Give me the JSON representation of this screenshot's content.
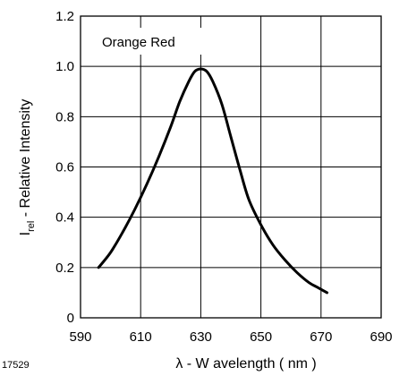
{
  "figure_id": "17529",
  "chart_data": {
    "type": "line",
    "annotation": "Orange Red",
    "xlabel": "λ - W avelength ( nm )",
    "ylabel_main": "I",
    "ylabel_sub": "rel",
    "ylabel_rest": "  -  Relative Intensity",
    "xlim": [
      590,
      690
    ],
    "ylim": [
      0,
      1.2
    ],
    "x_ticks": [
      590,
      610,
      630,
      650,
      670,
      690
    ],
    "y_ticks": [
      0,
      0.2,
      0.4,
      0.6,
      0.8,
      1.0,
      1.2
    ],
    "x_tick_labels": [
      "590",
      "610",
      "630",
      "650",
      "670",
      "690"
    ],
    "y_tick_labels": [
      "0",
      "0.2",
      "0.4",
      "0.6",
      "0.8",
      "1.0",
      "1.2"
    ],
    "grid": true,
    "series": [
      {
        "x": [
          596,
          600,
          604,
          608,
          612,
          616,
          620,
          623,
          626,
          628,
          630,
          632,
          634,
          637,
          640,
          643,
          646,
          650,
          654,
          658,
          662,
          666,
          669,
          672
        ],
        "values": [
          0.2,
          0.26,
          0.34,
          0.43,
          0.53,
          0.64,
          0.76,
          0.86,
          0.94,
          0.98,
          0.99,
          0.98,
          0.94,
          0.85,
          0.72,
          0.59,
          0.47,
          0.37,
          0.29,
          0.23,
          0.18,
          0.14,
          0.12,
          0.1
        ]
      }
    ]
  }
}
